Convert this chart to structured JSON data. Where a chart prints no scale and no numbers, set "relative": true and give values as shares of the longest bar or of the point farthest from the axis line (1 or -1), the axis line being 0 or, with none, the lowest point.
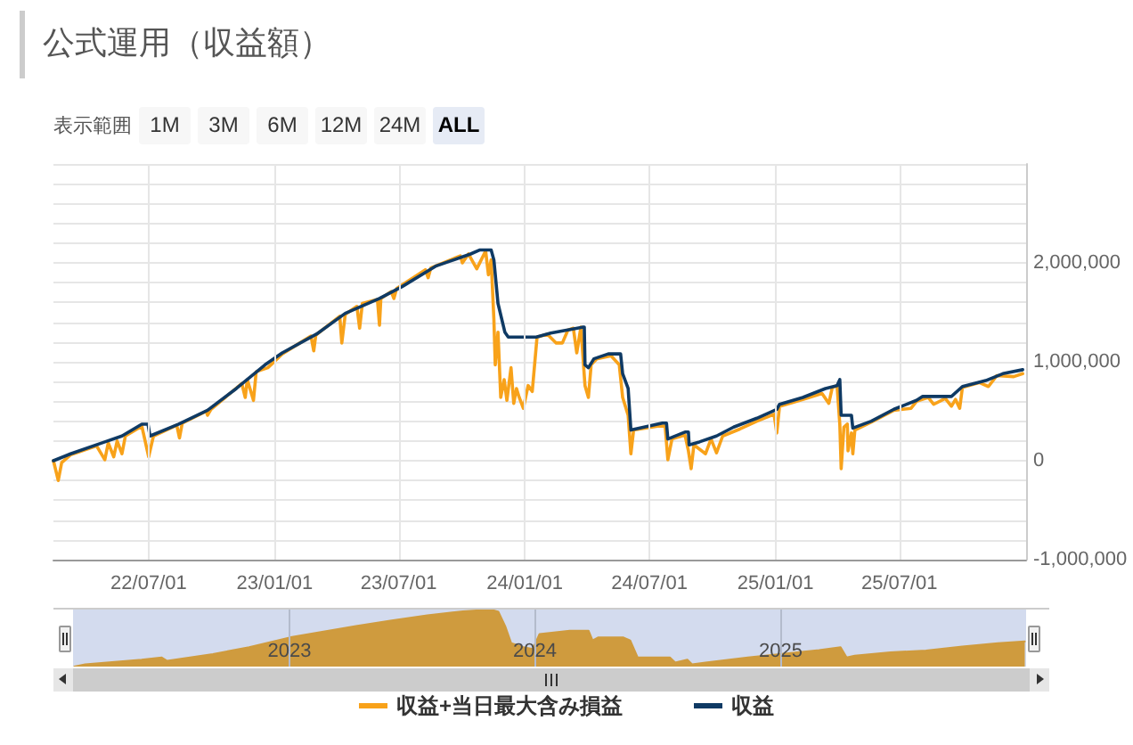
{
  "chart_data": [
    {
      "type": "line",
      "title": "公式運用（収益額）",
      "annotations": [
        "表示範囲",
        "1M",
        "3M",
        "6M",
        "12M",
        "24M",
        "ALL"
      ],
      "series": [
        {
          "name": "収益+当日最大含み損益",
          "color": "#f8a21a",
          "x": [
            "2022-02-12",
            "2022-02-19",
            "2022-02-24",
            "2022-03-09",
            "2022-04-16",
            "2022-04-28",
            "2022-05-03",
            "2022-05-11",
            "2022-05-16",
            "2022-05-23",
            "2022-05-28",
            "2022-06-21",
            "2022-07-01",
            "2022-07-08",
            "2022-08-11",
            "2022-08-15",
            "2022-08-19",
            "2022-09-23",
            "2022-09-25",
            "2022-09-30",
            "2022-11-14",
            "2022-11-19",
            "2022-11-22",
            "2022-12-01",
            "2022-12-05",
            "2022-12-22",
            "2023-01-12",
            "2023-02-23",
            "2023-02-27",
            "2023-03-02",
            "2023-04-06",
            "2023-04-09",
            "2023-04-14",
            "2023-05-01",
            "2023-05-05",
            "2023-05-09",
            "2023-05-31",
            "2023-06-03",
            "2023-06-05",
            "2023-06-20",
            "2023-06-24",
            "2023-06-28",
            "2023-08-09",
            "2023-08-13",
            "2023-08-17",
            "2023-09-29",
            "2023-10-02",
            "2023-10-11",
            "2023-10-23",
            "2023-11-05",
            "2023-11-09",
            "2023-11-13",
            "2023-11-17",
            "2023-11-19",
            "2023-11-23",
            "2023-11-27",
            "2023-12-02",
            "2023-12-06",
            "2023-12-12",
            "2023-12-16",
            "2023-12-20",
            "2023-12-24",
            "2023-12-30",
            "2024-01-06",
            "2024-01-12",
            "2024-01-19",
            "2024-02-03",
            "2024-02-16",
            "2024-02-25",
            "2024-03-04",
            "2024-03-12",
            "2024-03-17",
            "2024-03-23",
            "2024-03-29",
            "2024-04-03",
            "2024-04-07",
            "2024-04-15",
            "2024-05-06",
            "2024-05-18",
            "2024-05-23",
            "2024-05-31",
            "2024-06-04",
            "2024-06-08",
            "2024-07-13",
            "2024-07-24",
            "2024-07-28",
            "2024-08-03",
            "2024-08-22",
            "2024-08-27",
            "2024-08-31",
            "2024-09-04",
            "2024-09-21",
            "2024-09-29",
            "2024-10-07",
            "2024-10-16",
            "2024-11-10",
            "2024-12-05",
            "2024-12-30",
            "2025-01-03",
            "2025-01-07",
            "2025-02-10",
            "2025-03-10",
            "2025-03-20",
            "2025-03-25",
            "2025-04-01",
            "2025-04-05",
            "2025-04-07",
            "2025-04-11",
            "2025-04-16",
            "2025-04-17",
            "2025-04-22",
            "2025-04-24",
            "2025-04-27",
            "2025-05-21",
            "2025-06-23",
            "2025-07-18",
            "2025-07-26",
            "2025-08-12",
            "2025-08-20",
            "2025-09-06",
            "2025-09-15",
            "2025-09-21",
            "2025-09-27",
            "2025-10-01",
            "2025-10-26",
            "2025-11-08",
            "2025-11-20",
            "2025-12-15",
            "2025-12-28"
          ],
          "values": [
            0,
            -200000,
            -20000,
            60000,
            150000,
            10000,
            180000,
            40000,
            200000,
            70000,
            250000,
            350000,
            40000,
            250000,
            360000,
            230000,
            380000,
            500000,
            460000,
            520000,
            780000,
            640000,
            820000,
            610000,
            900000,
            940000,
            1080000,
            1260000,
            1110000,
            1270000,
            1460000,
            1190000,
            1480000,
            1560000,
            1340000,
            1590000,
            1630000,
            1370000,
            1640000,
            1710000,
            1640000,
            1740000,
            1930000,
            1850000,
            1950000,
            2070000,
            2000000,
            2090000,
            1940000,
            2120000,
            1880000,
            2030000,
            1430000,
            970000,
            1300000,
            640000,
            820000,
            610000,
            940000,
            580000,
            730000,
            640000,
            530000,
            760000,
            700000,
            1250000,
            1280000,
            1190000,
            1190000,
            1320000,
            1340000,
            1090000,
            1350000,
            760000,
            640000,
            970000,
            1030000,
            1060000,
            970000,
            640000,
            460000,
            70000,
            310000,
            350000,
            350000,
            10000,
            220000,
            260000,
            100000,
            -80000,
            160000,
            70000,
            220000,
            80000,
            250000,
            320000,
            400000,
            470000,
            280000,
            550000,
            620000,
            680000,
            580000,
            740000,
            760000,
            370000,
            -80000,
            340000,
            370000,
            100000,
            280000,
            70000,
            310000,
            390000,
            510000,
            530000,
            600000,
            640000,
            570000,
            630000,
            550000,
            620000,
            530000,
            740000,
            790000,
            750000,
            860000,
            850000,
            880000
          ]
        },
        {
          "name": "収益",
          "color": "#0f3a64",
          "x": [
            "2022-02-12",
            "2022-03-09",
            "2022-04-28",
            "2022-05-23",
            "2022-06-21",
            "2022-06-30",
            "2022-07-03",
            "2022-08-14",
            "2022-09-25",
            "2022-11-06",
            "2022-12-18",
            "2023-01-12",
            "2023-03-03",
            "2023-04-14",
            "2023-06-03",
            "2023-07-06",
            "2023-08-25",
            "2023-10-14",
            "2023-10-27",
            "2023-11-13",
            "2023-11-17",
            "2023-11-23",
            "2023-12-03",
            "2023-12-08",
            "2024-01-18",
            "2024-02-08",
            "2024-03-25",
            "2024-03-28",
            "2024-03-29",
            "2024-04-03",
            "2024-04-11",
            "2024-05-02",
            "2024-05-20",
            "2024-05-23",
            "2024-05-31",
            "2024-06-04",
            "2024-07-20",
            "2024-07-26",
            "2024-07-28",
            "2024-08-22",
            "2024-08-27",
            "2024-08-28",
            "2024-09-12",
            "2024-10-07",
            "2024-11-01",
            "2024-12-05",
            "2025-01-03",
            "2025-01-07",
            "2025-02-10",
            "2025-03-15",
            "2025-04-01",
            "2025-04-05",
            "2025-04-07",
            "2025-04-22",
            "2025-04-24",
            "2025-05-21",
            "2025-06-23",
            "2025-07-26",
            "2025-08-04",
            "2025-09-15",
            "2025-10-01",
            "2025-11-04",
            "2025-11-29",
            "2025-12-28"
          ],
          "values": [
            0,
            70000,
            190000,
            250000,
            370000,
            370000,
            250000,
            370000,
            510000,
            730000,
            970000,
            1090000,
            1280000,
            1490000,
            1640000,
            1760000,
            1970000,
            2090000,
            2130000,
            2130000,
            2030000,
            1590000,
            1300000,
            1250000,
            1250000,
            1290000,
            1350000,
            1350000,
            970000,
            940000,
            1030000,
            1080000,
            1080000,
            880000,
            730000,
            310000,
            380000,
            380000,
            220000,
            290000,
            290000,
            160000,
            190000,
            250000,
            340000,
            430000,
            520000,
            570000,
            640000,
            730000,
            760000,
            820000,
            460000,
            460000,
            330000,
            400000,
            520000,
            610000,
            650000,
            650000,
            750000,
            810000,
            880000,
            920000
          ]
        }
      ],
      "xlim": [
        "2022-02-12",
        "2026-01-02"
      ],
      "xticks": [
        {
          "value": "2022-07-01",
          "label": "22/07/01"
        },
        {
          "value": "2023-01-01",
          "label": "23/01/01"
        },
        {
          "value": "2023-07-01",
          "label": "23/07/01"
        },
        {
          "value": "2024-01-01",
          "label": "24/01/01"
        },
        {
          "value": "2024-07-01",
          "label": "24/07/01"
        },
        {
          "value": "2025-01-01",
          "label": "25/01/01"
        },
        {
          "value": "2025-07-01",
          "label": "25/07/01"
        }
      ],
      "ylim": [
        -1000000,
        3000000
      ],
      "yticks": [
        {
          "value": -1000000,
          "label": "-1,000,000"
        },
        {
          "value": -800000,
          "label": null
        },
        {
          "value": -600000,
          "label": null
        },
        {
          "value": -400000,
          "label": null
        },
        {
          "value": -200000,
          "label": null
        },
        0,
        {
          "value": 200000,
          "label": null
        },
        {
          "value": 400000,
          "label": null
        },
        {
          "value": 600000,
          "label": null
        },
        {
          "value": 800000,
          "label": null
        },
        {
          "value": 1000000,
          "label": "1,000,000"
        },
        {
          "value": 1200000,
          "label": null
        },
        {
          "value": 1400000,
          "label": null
        },
        {
          "value": 1600000,
          "label": null
        },
        {
          "value": 1800000,
          "label": null
        },
        {
          "value": 2000000,
          "label": "2,000,000"
        },
        {
          "value": 2200000,
          "label": null
        },
        {
          "value": 2400000,
          "label": null
        },
        {
          "value": 2600000,
          "label": null
        },
        {
          "value": 2800000,
          "label": null
        },
        {
          "value": 3000000,
          "label": null
        }
      ],
      "grid": true,
      "legend": "bottom"
    },
    {
      "type": "area",
      "relative": true,
      "color": "#cf9b3e",
      "x": [
        "2022-02-15",
        "2022-03-03",
        "2022-05-26",
        "2022-06-25",
        "2022-07-03",
        "2022-09-09",
        "2022-11-02",
        "2023-01-01",
        "2023-04-10",
        "2023-06-02",
        "2023-07-25",
        "2023-09-16",
        "2023-10-28",
        "2023-11-08",
        "2023-11-18",
        "2023-11-27",
        "2023-12-15",
        "2023-12-29",
        "2024-01-08",
        "2024-02-22",
        "2024-03-21",
        "2024-03-27",
        "2024-04-04",
        "2024-05-12",
        "2024-05-22",
        "2024-06-02",
        "2024-07-20",
        "2024-07-28",
        "2024-08-15",
        "2024-08-22",
        "2024-09-11",
        "2024-11-13",
        "2024-12-31",
        "2025-02-27",
        "2025-03-31",
        "2025-04-09",
        "2025-04-21",
        "2025-06-13",
        "2025-08-05",
        "2025-09-28",
        "2025-11-20",
        "2025-12-30"
      ],
      "values": [
        0,
        0.04,
        0.12,
        0.16,
        0.1,
        0.22,
        0.34,
        0.51,
        0.71,
        0.81,
        0.9,
        0.97,
        1,
        0.96,
        0.71,
        0.41,
        0.34,
        0.31,
        0.57,
        0.63,
        0.63,
        0.46,
        0.51,
        0.51,
        0.46,
        0.16,
        0.16,
        0.07,
        0.12,
        0.04,
        0.07,
        0.16,
        0.22,
        0.29,
        0.34,
        0.16,
        0.19,
        0.25,
        0.28,
        0.35,
        0.41,
        0.44
      ],
      "xlim": [
        "2022-02-13",
        "2026-01-01"
      ],
      "xticks": [
        {
          "value": "2023-01-01",
          "label": "2023"
        },
        {
          "value": "2024-01-01",
          "label": "2024"
        },
        {
          "value": "2025-01-01",
          "label": "2025"
        }
      ],
      "tick_labels": "x",
      "grid": "x"
    }
  ]
}
